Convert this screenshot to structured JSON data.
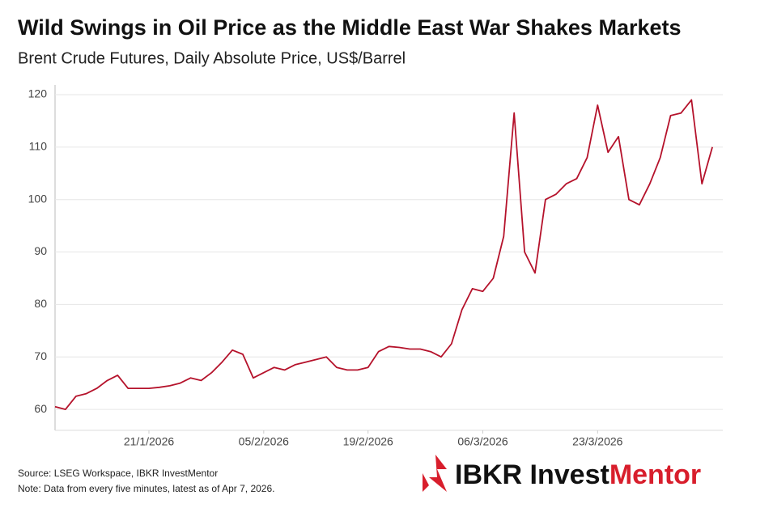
{
  "chart_data": {
    "type": "line",
    "title": "Wild Swings in Oil Price as the Middle East War Shakes Markets",
    "subtitle": "Brent Crude Futures, Daily Absolute Price, US$/Barrel",
    "x": [
      "2026-01-08",
      "2026-01-09",
      "2026-01-12",
      "2026-01-13",
      "2026-01-14",
      "2026-01-15",
      "2026-01-16",
      "2026-01-19",
      "2026-01-20",
      "2026-01-21",
      "2026-01-22",
      "2026-01-23",
      "2026-01-26",
      "2026-01-27",
      "2026-01-28",
      "2026-01-29",
      "2026-01-30",
      "2026-02-02",
      "2026-02-03",
      "2026-02-04",
      "2026-02-05",
      "2026-02-06",
      "2026-02-09",
      "2026-02-10",
      "2026-02-11",
      "2026-02-12",
      "2026-02-13",
      "2026-02-16",
      "2026-02-17",
      "2026-02-18",
      "2026-02-19",
      "2026-02-20",
      "2026-02-23",
      "2026-02-24",
      "2026-02-25",
      "2026-02-26",
      "2026-02-27",
      "2026-03-02",
      "2026-03-03",
      "2026-03-04",
      "2026-03-05",
      "2026-03-06",
      "2026-03-09",
      "2026-03-10",
      "2026-03-11",
      "2026-03-12",
      "2026-03-13",
      "2026-03-16",
      "2026-03-17",
      "2026-03-18",
      "2026-03-19",
      "2026-03-20",
      "2026-03-23",
      "2026-03-24",
      "2026-03-25",
      "2026-03-26",
      "2026-03-27",
      "2026-03-30",
      "2026-03-31",
      "2026-04-01",
      "2026-04-02",
      "2026-04-03",
      "2026-04-06",
      "2026-04-07"
    ],
    "series": [
      {
        "name": "Brent Crude Futures",
        "color": "#b5122b",
        "values": [
          60.5,
          60,
          62.5,
          63,
          64,
          65.5,
          66.5,
          64,
          64,
          64,
          64.2,
          64.5,
          65,
          66,
          65.5,
          67,
          69,
          71.3,
          70.5,
          66,
          67,
          68,
          67.5,
          68.5,
          69,
          69.5,
          70,
          68,
          67.5,
          67.5,
          68,
          71,
          72,
          71.8,
          71.5,
          71.5,
          71,
          70,
          72.5,
          79,
          83,
          82.5,
          85,
          93,
          116.5,
          90,
          86,
          100,
          101,
          103,
          104,
          108,
          118,
          109,
          112,
          100,
          99,
          103,
          108,
          116,
          116.5,
          119,
          103,
          110
        ]
      }
    ],
    "xlim": [
      "2026-01-08",
      "2026-04-08"
    ],
    "xticks": [
      {
        "value": "2026-01-21",
        "label": "21/1/2026"
      },
      {
        "value": "2026-02-05",
        "label": "05/2/2026"
      },
      {
        "value": "2026-02-19",
        "label": "19/2/2026"
      },
      {
        "value": "2026-03-06",
        "label": "06/3/2026"
      },
      {
        "value": "2026-03-23",
        "label": "23/3/2026"
      }
    ],
    "ylim": [
      56,
      120
    ],
    "yticks": [
      60,
      70,
      80,
      90,
      100,
      110,
      120
    ],
    "grid": true
  },
  "footer": {
    "source": "Source: LSEG Workspace, IBKR InvestMentor",
    "note": "Note: Data from every five minutes, latest as of  Apr 7, 2026.",
    "logo": [
      "IBKR Invest",
      "Mentor"
    ]
  }
}
